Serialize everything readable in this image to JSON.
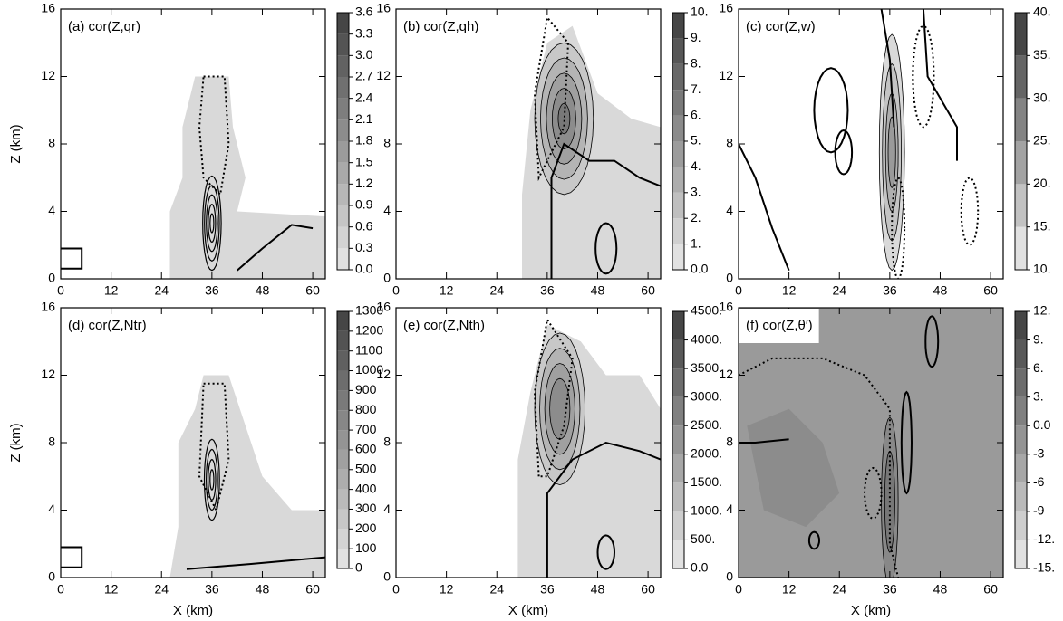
{
  "chart_data": [
    {
      "type": "contour",
      "title": "(a) cor(Z,qr)",
      "y_label": "Z (km)",
      "xlim": [
        0,
        63
      ],
      "xticks": [
        0,
        12,
        24,
        36,
        48,
        60
      ],
      "ylim": [
        0,
        16
      ],
      "yticks": [
        0,
        4,
        8,
        12,
        16
      ],
      "colorbar_lim": [
        0,
        3.6
      ],
      "colorbar_ticks": [
        {
          "value": 0,
          "label": "0.0"
        },
        0.3,
        0.6,
        0.9,
        1.2,
        1.5,
        1.8,
        2.1,
        2.4,
        2.7,
        {
          "value": 3,
          "label": "3.0"
        },
        3.3,
        3.6
      ]
    },
    {
      "type": "contour",
      "title": "(b) cor(Z,qh)",
      "xlim": [
        0,
        63
      ],
      "xticks": [
        0,
        12,
        24,
        36,
        48,
        60
      ],
      "ylim": [
        0,
        16
      ],
      "yticks": [
        0,
        4,
        8,
        12,
        16
      ],
      "colorbar_lim": [
        0,
        10
      ],
      "colorbar_ticks": [
        {
          "value": 0,
          "label": "0.0"
        },
        {
          "value": 1,
          "label": "1."
        },
        {
          "value": 2,
          "label": "2."
        },
        {
          "value": 3,
          "label": "3."
        },
        {
          "value": 4,
          "label": "4."
        },
        {
          "value": 5,
          "label": "5."
        },
        {
          "value": 6,
          "label": "6."
        },
        {
          "value": 7,
          "label": "7."
        },
        {
          "value": 8,
          "label": "8."
        },
        {
          "value": 9,
          "label": "9."
        },
        {
          "value": 10,
          "label": "10."
        }
      ]
    },
    {
      "type": "contour",
      "title": "(c) cor(Z,w)",
      "xlim": [
        0,
        63
      ],
      "xticks": [
        0,
        12,
        24,
        36,
        48,
        60
      ],
      "ylim": [
        0,
        16
      ],
      "yticks": [
        0,
        4,
        8,
        12,
        16
      ],
      "colorbar_lim": [
        10,
        40
      ],
      "colorbar_ticks": [
        {
          "value": 10,
          "label": "10."
        },
        {
          "value": 15,
          "label": "15."
        },
        {
          "value": 20,
          "label": "20."
        },
        {
          "value": 25,
          "label": "25."
        },
        {
          "value": 30,
          "label": "30."
        },
        {
          "value": 35,
          "label": "35."
        },
        {
          "value": 40,
          "label": "40."
        }
      ]
    },
    {
      "type": "contour",
      "title": "(d) cor(Z,Ntr)",
      "x_label": "X (km)",
      "y_label": "Z (km)",
      "xlim": [
        0,
        63
      ],
      "xticks": [
        0,
        12,
        24,
        36,
        48,
        60
      ],
      "ylim": [
        0,
        16
      ],
      "yticks": [
        0,
        4,
        8,
        12,
        16
      ],
      "colorbar_lim": [
        0,
        1300
      ],
      "colorbar_ticks": [
        0,
        100,
        200,
        300,
        400,
        500,
        600,
        700,
        800,
        900,
        1000,
        1100,
        1200,
        1300
      ]
    },
    {
      "type": "contour",
      "title": "(e) cor(Z,Nth)",
      "x_label": "X (km)",
      "xlim": [
        0,
        63
      ],
      "xticks": [
        0,
        12,
        24,
        36,
        48,
        60
      ],
      "ylim": [
        0,
        16
      ],
      "yticks": [
        0,
        4,
        8,
        12,
        16
      ],
      "colorbar_lim": [
        0,
        4500
      ],
      "colorbar_ticks": [
        {
          "value": 0,
          "label": "0.0"
        },
        {
          "value": 500,
          "label": "500."
        },
        {
          "value": 1000,
          "label": "1000."
        },
        {
          "value": 1500,
          "label": "1500."
        },
        {
          "value": 2000,
          "label": "2000."
        },
        {
          "value": 2500,
          "label": "2500."
        },
        {
          "value": 3000,
          "label": "3000."
        },
        {
          "value": 3500,
          "label": "3500."
        },
        {
          "value": 4000,
          "label": "4000."
        },
        {
          "value": 4500,
          "label": "4500."
        }
      ]
    },
    {
      "type": "contour",
      "title": "(f) cor(Z,θ′)",
      "x_label": "X (km)",
      "xlim": [
        0,
        63
      ],
      "xticks": [
        0,
        12,
        24,
        36,
        48,
        60
      ],
      "ylim": [
        0,
        16
      ],
      "yticks": [
        0,
        4,
        8,
        12,
        16
      ],
      "colorbar_lim": [
        -15,
        12
      ],
      "colorbar_ticks": [
        {
          "value": -15,
          "label": "-15."
        },
        {
          "value": -12,
          "label": "-12."
        },
        -9,
        -6,
        -3,
        {
          "value": 0,
          "label": "0.0"
        },
        {
          "value": 3,
          "label": "3."
        },
        {
          "value": 6,
          "label": "6."
        },
        {
          "value": 9,
          "label": "9."
        },
        {
          "value": 12,
          "label": "12."
        }
      ]
    }
  ]
}
